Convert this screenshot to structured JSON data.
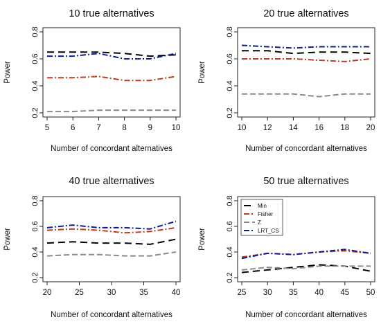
{
  "chart_data": [
    {
      "type": "line",
      "title": "10 true alternatives",
      "xlabel": "Number of concordant alternatives",
      "ylabel": "Power",
      "xlim": [
        5,
        10
      ],
      "ylim": [
        0.2,
        0.8
      ],
      "xticks": [
        5,
        6,
        7,
        8,
        9,
        10
      ],
      "yticks": [
        0.2,
        0.4,
        0.6,
        0.8
      ],
      "x": [
        5,
        6,
        7,
        8,
        9,
        10
      ],
      "series": [
        {
          "name": "Min",
          "values": [
            0.65,
            0.65,
            0.65,
            0.64,
            0.62,
            0.63
          ]
        },
        {
          "name": "Fisher",
          "values": [
            0.46,
            0.46,
            0.47,
            0.44,
            0.44,
            0.47
          ]
        },
        {
          "name": "Z",
          "values": [
            0.21,
            0.21,
            0.22,
            0.22,
            0.22,
            0.22
          ]
        },
        {
          "name": "LRT_CS",
          "values": [
            0.62,
            0.62,
            0.64,
            0.6,
            0.6,
            0.64
          ]
        }
      ]
    },
    {
      "type": "line",
      "title": "20 true alternatives",
      "xlabel": "Number of concordant alternatives",
      "ylabel": "Power",
      "xlim": [
        10,
        20
      ],
      "ylim": [
        0.2,
        0.8
      ],
      "xticks": [
        10,
        12,
        14,
        16,
        18,
        20
      ],
      "yticks": [
        0.2,
        0.4,
        0.6,
        0.8
      ],
      "x": [
        10,
        12,
        14,
        16,
        18,
        20
      ],
      "series": [
        {
          "name": "Min",
          "values": [
            0.66,
            0.66,
            0.64,
            0.65,
            0.65,
            0.64
          ]
        },
        {
          "name": "Fisher",
          "values": [
            0.6,
            0.6,
            0.6,
            0.59,
            0.58,
            0.6
          ]
        },
        {
          "name": "Z",
          "values": [
            0.34,
            0.34,
            0.34,
            0.32,
            0.34,
            0.34
          ]
        },
        {
          "name": "LRT_CS",
          "values": [
            0.7,
            0.69,
            0.68,
            0.69,
            0.69,
            0.69
          ]
        }
      ]
    },
    {
      "type": "line",
      "title": "40 true alternatives",
      "xlabel": "Number of concordant alternatives",
      "ylabel": "Power",
      "xlim": [
        20,
        40
      ],
      "ylim": [
        0.2,
        0.8
      ],
      "xticks": [
        20,
        25,
        30,
        35,
        40
      ],
      "yticks": [
        0.2,
        0.4,
        0.6,
        0.8
      ],
      "x": [
        20,
        24,
        28,
        32,
        36,
        40
      ],
      "series": [
        {
          "name": "Min",
          "values": [
            0.47,
            0.48,
            0.47,
            0.47,
            0.46,
            0.5
          ]
        },
        {
          "name": "Fisher",
          "values": [
            0.57,
            0.58,
            0.57,
            0.55,
            0.56,
            0.59
          ]
        },
        {
          "name": "Z",
          "values": [
            0.37,
            0.38,
            0.38,
            0.37,
            0.37,
            0.4
          ]
        },
        {
          "name": "LRT_CS",
          "values": [
            0.59,
            0.61,
            0.59,
            0.59,
            0.58,
            0.64
          ]
        }
      ]
    },
    {
      "type": "line",
      "title": "50 true alternatives",
      "xlabel": "Number of concordant alternatives",
      "ylabel": "Power",
      "xlim": [
        25,
        50
      ],
      "ylim": [
        0.2,
        0.8
      ],
      "xticks": [
        25,
        30,
        35,
        40,
        45,
        50
      ],
      "yticks": [
        0.2,
        0.4,
        0.6,
        0.8
      ],
      "legend_position": "top-left",
      "x": [
        25,
        30,
        35,
        40,
        45,
        50
      ],
      "series": [
        {
          "name": "Min",
          "values": [
            0.24,
            0.26,
            0.28,
            0.3,
            0.29,
            0.25
          ]
        },
        {
          "name": "Fisher",
          "values": [
            0.36,
            0.39,
            0.38,
            0.4,
            0.41,
            0.39
          ]
        },
        {
          "name": "Z",
          "values": [
            0.26,
            0.28,
            0.27,
            0.29,
            0.29,
            0.29
          ]
        },
        {
          "name": "LRT_CS",
          "values": [
            0.35,
            0.39,
            0.38,
            0.4,
            0.42,
            0.39
          ]
        }
      ]
    }
  ],
  "series_styles": [
    {
      "name": "Min",
      "color": "#000000",
      "dash": "10,6"
    },
    {
      "name": "Fisher",
      "color": "#c0391b",
      "dash": "8,3,2,3"
    },
    {
      "name": "Z",
      "color": "#8a8a8a",
      "dash": "8,4"
    },
    {
      "name": "LRT_CS",
      "color": "#0d1b8c",
      "dash": "8,3,2,3"
    }
  ]
}
